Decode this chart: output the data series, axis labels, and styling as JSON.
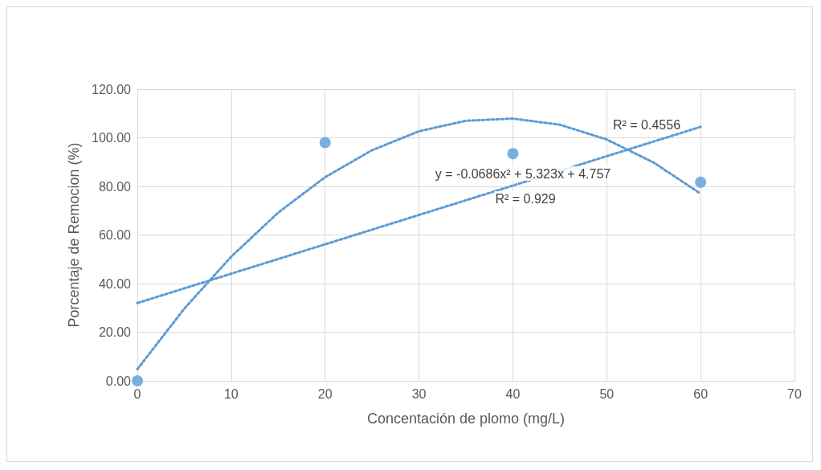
{
  "chart_data": {
    "type": "scatter",
    "xlabel": "Concentación de plomo (mg/L)",
    "ylabel": "Porcentaje de Remocion (%)",
    "series": [
      {
        "color": "#5b9bd5",
        "marker": "circle",
        "x": [
          0,
          20,
          40,
          60
        ],
        "values": [
          0,
          98,
          93.5,
          81.7
        ]
      },
      {
        "type": "line",
        "color": "#5b9bd5",
        "marker": "none",
        "line_style": "dotted",
        "x": [
          0,
          60
        ],
        "values": [
          32,
          104.5
        ]
      },
      {
        "type": "line",
        "color": "#5b9bd5",
        "marker": "none",
        "line_style": "dotted",
        "x": [
          0,
          5,
          10,
          15,
          20,
          25,
          30,
          35,
          40,
          45,
          50,
          55,
          60
        ],
        "values": [
          4.8,
          29.7,
          51.1,
          69.2,
          83.8,
          94.9,
          102.7,
          107.0,
          107.9,
          105.4,
          99.3,
          89.8,
          77.0
        ]
      }
    ],
    "annotations": [
      "R² = 0.4556",
      "y = -0.0686x² + 5.323x + 4.757",
      "R² = 0.929"
    ],
    "xlim": [
      0,
      70
    ],
    "xticks": [
      0,
      10,
      20,
      30,
      40,
      50,
      60,
      70
    ],
    "ylim": [
      0,
      120
    ],
    "yticks": [
      {
        "value": 0,
        "label": "0.00"
      },
      {
        "value": 20,
        "label": "20.00"
      },
      {
        "value": 40,
        "label": "40.00"
      },
      {
        "value": 60,
        "label": "60.00"
      },
      {
        "value": 80,
        "label": "80.00"
      },
      {
        "value": 100,
        "label": "100.00"
      },
      {
        "value": 120,
        "label": "120.00"
      }
    ],
    "grid": true
  }
}
